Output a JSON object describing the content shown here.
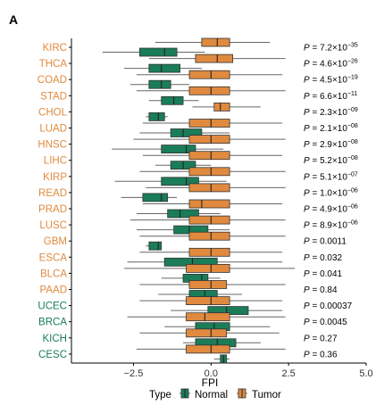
{
  "panel_label": "A",
  "chart_data": {
    "type": "boxplot",
    "orientation": "horizontal",
    "xlabel": "FPI",
    "xlim": [
      -4.5,
      5.0
    ],
    "xticks": [
      -2.5,
      0.0,
      2.5,
      5.0
    ],
    "xtick_labels": [
      "−2.5",
      "0.0",
      "2.5",
      "5.0"
    ],
    "grid": false,
    "legend": {
      "title": "Type",
      "position": "bottom",
      "entries": [
        {
          "name": "Normal",
          "color": "#1a7d58"
        },
        {
          "name": "Tumor",
          "color": "#e08a3f"
        }
      ]
    },
    "colors": {
      "Normal": "#1a7d58",
      "Tumor": "#e08a3f",
      "label_orange": "#e08a3f",
      "label_green": "#1a7d58"
    },
    "categories": [
      {
        "name": "KIRC",
        "label_color": "orange",
        "p_main": "P = 7.2×10",
        "p_exp": "−35",
        "tumor": {
          "min": -1.8,
          "q1": -0.3,
          "median": 0.2,
          "q3": 0.6,
          "max": 1.9
        },
        "normal": {
          "min": -3.5,
          "q1": -2.3,
          "median": -1.5,
          "q3": -1.1,
          "max": -0.2
        }
      },
      {
        "name": "THCA",
        "label_color": "orange",
        "p_main": "P = 4.6×10",
        "p_exp": "−26",
        "tumor": {
          "min": -2.0,
          "q1": -0.5,
          "median": 0.2,
          "q3": 0.7,
          "max": 2.4
        },
        "normal": {
          "min": -2.8,
          "q1": -2.0,
          "median": -1.6,
          "q3": -1.0,
          "max": -0.3
        }
      },
      {
        "name": "COAD",
        "label_color": "orange",
        "p_main": "P = 4.5×10",
        "p_exp": "−19",
        "tumor": {
          "min": -2.4,
          "q1": -0.7,
          "median": 0.0,
          "q3": 0.6,
          "max": 2.3
        },
        "normal": {
          "min": -2.6,
          "q1": -2.0,
          "median": -1.6,
          "q3": -1.3,
          "max": -0.7
        }
      },
      {
        "name": "STAD",
        "label_color": "orange",
        "p_main": "P = 6.6×10",
        "p_exp": "−11",
        "tumor": {
          "min": -2.4,
          "q1": -0.7,
          "median": 0.0,
          "q3": 0.6,
          "max": 2.4
        },
        "normal": {
          "min": -2.0,
          "q1": -1.6,
          "median": -1.2,
          "q3": -0.9,
          "max": -0.4
        }
      },
      {
        "name": "CHOL",
        "label_color": "orange",
        "p_main": "P = 2.3×10",
        "p_exp": "−09",
        "tumor": {
          "min": -0.6,
          "q1": 0.1,
          "median": 0.3,
          "q3": 0.6,
          "max": 1.6
        },
        "normal": {
          "min": -2.1,
          "q1": -2.0,
          "median": -1.7,
          "q3": -1.5,
          "max": -1.4
        }
      },
      {
        "name": "LUAD",
        "label_color": "orange",
        "p_main": "P = 2.1×10",
        "p_exp": "−08",
        "tumor": {
          "min": -2.2,
          "q1": -0.7,
          "median": 0.0,
          "q3": 0.6,
          "max": 2.3
        },
        "normal": {
          "min": -2.3,
          "q1": -1.3,
          "median": -0.9,
          "q3": -0.3,
          "max": 0.6
        }
      },
      {
        "name": "HNSC",
        "label_color": "orange",
        "p_main": "P = 2.9×10",
        "p_exp": "−08",
        "tumor": {
          "min": -2.5,
          "q1": -0.7,
          "median": 0.0,
          "q3": 0.6,
          "max": 2.4
        },
        "normal": {
          "min": -3.2,
          "q1": -1.6,
          "median": -0.8,
          "q3": -0.5,
          "max": 0.4
        }
      },
      {
        "name": "LIHC",
        "label_color": "orange",
        "p_main": "P = 5.2×10",
        "p_exp": "−08",
        "tumor": {
          "min": -2.2,
          "q1": -0.7,
          "median": 0.0,
          "q3": 0.6,
          "max": 2.3
        },
        "normal": {
          "min": -1.8,
          "q1": -1.3,
          "median": -0.9,
          "q3": -0.5,
          "max": 0.0
        }
      },
      {
        "name": "KIRP",
        "label_color": "orange",
        "p_main": "P = 5.1×10",
        "p_exp": "−07",
        "tumor": {
          "min": -2.3,
          "q1": -0.7,
          "median": 0.0,
          "q3": 0.6,
          "max": 2.4
        },
        "normal": {
          "min": -3.1,
          "q1": -1.6,
          "median": -0.8,
          "q3": -0.4,
          "max": 0.5
        }
      },
      {
        "name": "READ",
        "label_color": "orange",
        "p_main": "P = 1.0×10",
        "p_exp": "−06",
        "tumor": {
          "min": -2.1,
          "q1": -0.7,
          "median": 0.0,
          "q3": 0.6,
          "max": 2.4
        },
        "normal": {
          "min": -2.9,
          "q1": -2.2,
          "median": -1.6,
          "q3": -1.4,
          "max": -1.1
        }
      },
      {
        "name": "PRAD",
        "label_color": "orange",
        "p_main": "P = 4.9×10",
        "p_exp": "−06",
        "tumor": {
          "min": -2.2,
          "q1": -0.7,
          "median": -0.3,
          "q3": 0.6,
          "max": 2.3
        },
        "normal": {
          "min": -2.4,
          "q1": -1.4,
          "median": -1.0,
          "q3": -0.4,
          "max": 0.3
        }
      },
      {
        "name": "LUSC",
        "label_color": "orange",
        "p_main": "P = 8.9×10",
        "p_exp": "−06",
        "tumor": {
          "min": -2.6,
          "q1": -0.7,
          "median": 0.0,
          "q3": 0.6,
          "max": 2.4
        },
        "normal": {
          "min": -2.4,
          "q1": -1.2,
          "median": -0.7,
          "q3": -0.1,
          "max": 0.6
        }
      },
      {
        "name": "GBM",
        "label_color": "orange",
        "p_main": "P = 0.0011",
        "p_exp": "",
        "tumor": {
          "min": -2.3,
          "q1": -0.7,
          "median": 0.0,
          "q3": 0.6,
          "max": 2.4
        },
        "normal": {
          "min": -2.1,
          "q1": -2.0,
          "median": -1.7,
          "q3": -1.6,
          "max": -1.6
        }
      },
      {
        "name": "ESCA",
        "label_color": "orange",
        "p_main": "P = 0.032",
        "p_exp": "",
        "tumor": {
          "min": -2.3,
          "q1": -0.7,
          "median": 0.0,
          "q3": 0.6,
          "max": 2.3
        },
        "normal": {
          "min": -2.7,
          "q1": -1.5,
          "median": -0.6,
          "q3": 0.2,
          "max": 2.3
        }
      },
      {
        "name": "BLCA",
        "label_color": "orange",
        "p_main": "P = 0.041",
        "p_exp": "",
        "tumor": {
          "min": -2.8,
          "q1": -0.8,
          "median": 0.0,
          "q3": 0.6,
          "max": 2.7
        },
        "normal": {
          "min": -1.6,
          "q1": -0.9,
          "median": -0.3,
          "q3": -0.1,
          "max": 0.3
        }
      },
      {
        "name": "PAAD",
        "label_color": "orange",
        "p_main": "P = 0.84",
        "p_exp": "",
        "tumor": {
          "min": -2.3,
          "q1": -0.7,
          "median": 0.0,
          "q3": 0.5,
          "max": 2.4
        },
        "normal": {
          "min": -1.7,
          "q1": -0.7,
          "median": -0.2,
          "q3": 0.2,
          "max": 1.0
        }
      },
      {
        "name": "UCEC",
        "label_color": "green",
        "p_main": "P = 0.00037",
        "p_exp": "",
        "tumor": {
          "min": -2.3,
          "q1": -0.8,
          "median": 0.0,
          "q3": 0.6,
          "max": 2.3
        },
        "normal": {
          "min": -1.3,
          "q1": -0.1,
          "median": 0.5,
          "q3": 1.2,
          "max": 2.3
        }
      },
      {
        "name": "BRCA",
        "label_color": "green",
        "p_main": "P = 0.0045",
        "p_exp": "",
        "tumor": {
          "min": -2.7,
          "q1": -0.8,
          "median": -0.2,
          "q3": 0.6,
          "max": 2.4
        },
        "normal": {
          "min": -1.5,
          "q1": -0.5,
          "median": 0.1,
          "q3": 0.6,
          "max": 1.9
        }
      },
      {
        "name": "KICH",
        "label_color": "green",
        "p_main": "P = 0.27",
        "p_exp": "",
        "tumor": {
          "min": -2.3,
          "q1": -0.8,
          "median": 0.0,
          "q3": 0.5,
          "max": 2.2
        },
        "normal": {
          "min": -0.9,
          "q1": -0.5,
          "median": 0.2,
          "q3": 0.8,
          "max": 1.6
        }
      },
      {
        "name": "CESC",
        "label_color": "green",
        "p_main": "P = 0.36",
        "p_exp": "",
        "tumor": {
          "min": -2.4,
          "q1": -0.8,
          "median": 0.0,
          "q3": 0.6,
          "max": 2.4
        },
        "normal": {
          "min": 0.1,
          "q1": 0.3,
          "median": 0.4,
          "q3": 0.5,
          "max": 0.6
        }
      }
    ]
  }
}
